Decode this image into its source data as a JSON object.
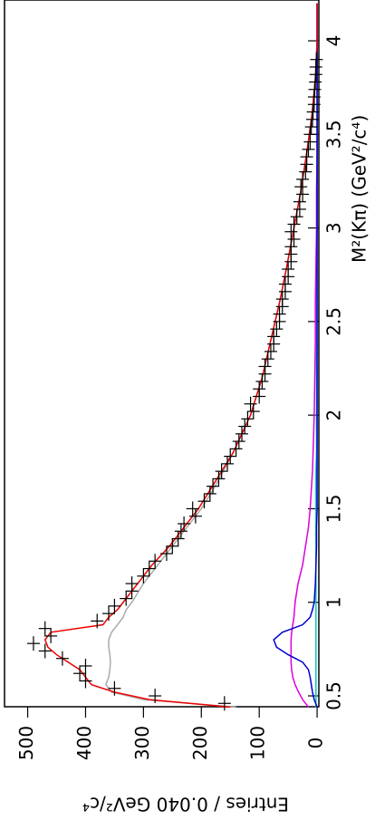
{
  "chart_data": {
    "type": "histogram-fit",
    "x_label": "M²(Kπ) (GeV²/c⁴)",
    "y_label": "Entries / 0.040 GeV²/c⁴",
    "xlim": [
      0.442,
      4.218
    ],
    "xticks": [
      0.5,
      1,
      1.5,
      2,
      2.5,
      3,
      3.5,
      4
    ],
    "ylim": [
      -3,
      540
    ],
    "yticks": [
      0,
      100,
      200,
      300,
      400,
      500
    ],
    "orientation": "rotated",
    "data": {
      "color": "#000000",
      "x": [
        0.46,
        0.5,
        0.54,
        0.58,
        0.62,
        0.66,
        0.7,
        0.74,
        0.78,
        0.82,
        0.86,
        0.9,
        0.94,
        0.98,
        1.02,
        1.06,
        1.1,
        1.14,
        1.18,
        1.22,
        1.26,
        1.3,
        1.34,
        1.38,
        1.42,
        1.46,
        1.5,
        1.54,
        1.58,
        1.62,
        1.66,
        1.7,
        1.74,
        1.78,
        1.82,
        1.86,
        1.9,
        1.94,
        1.98,
        2.02,
        2.06,
        2.1,
        2.14,
        2.18,
        2.22,
        2.26,
        2.3,
        2.34,
        2.38,
        2.42,
        2.46,
        2.5,
        2.54,
        2.58,
        2.62,
        2.66,
        2.7,
        2.74,
        2.78,
        2.82,
        2.86,
        2.9,
        2.94,
        2.98,
        3.02,
        3.06,
        3.1,
        3.14,
        3.18,
        3.22,
        3.26,
        3.3,
        3.34,
        3.38,
        3.42,
        3.46,
        3.5,
        3.54,
        3.58,
        3.62,
        3.66,
        3.7,
        3.74,
        3.78,
        3.82,
        3.86,
        3.9
      ],
      "values": [
        160,
        280,
        350,
        400,
        410,
        400,
        440,
        470,
        490,
        460,
        470,
        380,
        360,
        350,
        330,
        320,
        320,
        300,
        290,
        280,
        260,
        250,
        240,
        235,
        230,
        210,
        215,
        195,
        185,
        180,
        170,
        165,
        155,
        150,
        140,
        135,
        130,
        125,
        120,
        110,
        115,
        100,
        100,
        95,
        90,
        90,
        85,
        80,
        75,
        75,
        70,
        65,
        65,
        60,
        60,
        55,
        55,
        50,
        50,
        45,
        45,
        45,
        40,
        45,
        40,
        35,
        30,
        30,
        25,
        28,
        25,
        20,
        18,
        18,
        15,
        12,
        12,
        10,
        8,
        7,
        5,
        5,
        4,
        3,
        2,
        2,
        1
      ]
    },
    "curves_x": [
      0.44,
      0.48,
      0.52,
      0.56,
      0.6,
      0.64,
      0.68,
      0.72,
      0.76,
      0.8,
      0.84,
      0.88,
      0.92,
      0.96,
      1.0,
      1.1,
      1.2,
      1.3,
      1.4,
      1.5,
      1.6,
      1.7,
      1.8,
      1.9,
      2.0,
      2.2,
      2.4,
      2.6,
      2.8,
      3.0,
      3.2,
      3.4,
      3.6,
      3.8,
      4.0,
      4.2
    ],
    "series": [
      {
        "color": "#aaaaaa",
        "values": [
          140,
          300,
          355,
          365,
          360,
          358,
          357,
          358,
          360,
          360,
          355,
          345,
          335,
          330,
          320,
          300,
          275,
          250,
          225,
          200,
          180,
          162,
          145,
          130,
          115,
          95,
          80,
          65,
          52,
          40,
          28,
          18,
          9,
          3,
          0,
          0
        ]
      },
      {
        "color": "#00c8c8",
        "values": [
          2,
          2,
          2,
          2,
          2,
          2,
          2,
          2,
          2,
          2,
          2,
          2,
          2,
          2,
          2,
          2,
          2,
          2,
          2,
          2,
          2,
          2,
          1,
          1,
          1,
          1,
          1,
          1,
          1,
          0,
          0,
          0,
          0,
          0,
          0,
          0
        ]
      },
      {
        "color": "#dd00dd",
        "values": [
          15,
          25,
          32,
          38,
          42,
          44,
          45,
          45,
          45,
          45,
          44,
          42,
          40,
          39,
          38,
          33,
          25,
          20,
          15,
          12,
          10,
          8,
          7,
          6,
          5,
          4,
          3,
          3,
          2,
          1,
          1,
          0,
          0,
          0,
          0,
          0
        ]
      },
      {
        "color": "#0000cc",
        "values": [
          0,
          5,
          8,
          10,
          12,
          15,
          25,
          50,
          70,
          75,
          60,
          25,
          12,
          8,
          5,
          3,
          2,
          1,
          1,
          0,
          0,
          0,
          0,
          0,
          0,
          0,
          0,
          0,
          0,
          0,
          0,
          0,
          0,
          0,
          0,
          0
        ]
      },
      {
        "color": "#ee0000",
        "values": [
          150,
          290,
          350,
          390,
          400,
          410,
          430,
          450,
          465,
          470,
          460,
          370,
          360,
          345,
          335,
          310,
          285,
          255,
          230,
          205,
          185,
          165,
          145,
          130,
          115,
          95,
          80,
          65,
          52,
          40,
          28,
          18,
          9,
          3,
          0,
          0
        ]
      }
    ]
  }
}
